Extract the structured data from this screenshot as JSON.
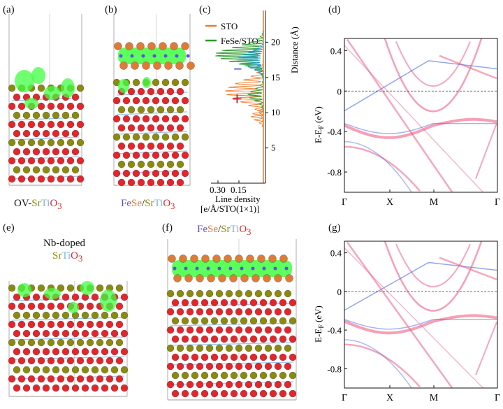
{
  "panels": {
    "a": {
      "label": "(a)",
      "caption": {
        "prefix": "OV-",
        "sr": "Sr",
        "ti": "Ti",
        "o": "O",
        "sub": "3"
      }
    },
    "b": {
      "label": "(b)",
      "caption": {
        "fe": "Fe",
        "se": "Se",
        "sep": "/",
        "sr": "Sr",
        "ti": "Ti",
        "o": "O",
        "sub": "3"
      }
    },
    "c": {
      "label": "(c)"
    },
    "d": {
      "label": "(d)"
    },
    "e": {
      "label": "(e)",
      "caption_line1": "Nb-doped",
      "caption": {
        "sr": "Sr",
        "ti": "Ti",
        "o": "O",
        "sub": "3"
      }
    },
    "f": {
      "label": "(f)",
      "caption": {
        "fe": "Fe",
        "se": "Se",
        "sep": "/",
        "sr": "Sr",
        "ti": "Ti",
        "o": "O",
        "sub": "3"
      }
    },
    "g": {
      "label": "(g)"
    }
  },
  "density_plot": {
    "legend": [
      {
        "name": "STO",
        "color": "#f07a2a"
      },
      {
        "name": "FeSe/STO",
        "color": "#2a9a2a"
      }
    ],
    "xlabel_line1": "Line density",
    "xlabel_line2": "[e/Å/STO(1×1)]",
    "x_ticks": [
      "0.30",
      "0.15"
    ],
    "ylabel": "Distance (Å)",
    "y_ticks": [
      "5",
      "10",
      "15",
      "20"
    ],
    "minus_sign": "−",
    "plus_sign": "+"
  },
  "band_plots": {
    "ylabel": "E-E",
    "ylabel_sub": "F",
    "ylabel_unit": " (eV)",
    "y_ticks": [
      "0.4",
      "0",
      "-0.4",
      "-0.8"
    ],
    "k_labels": [
      "Γ",
      "X",
      "M",
      "Γ"
    ]
  },
  "colors": {
    "oxygen": "#e3262b",
    "strontium": "#8a8a10",
    "titanium": "#7fb7e8",
    "iron": "#5a52d8",
    "selenium": "#e07b35",
    "charge": "#40ff40",
    "band_red": "#f0507a",
    "band_blue": "#4a6ae0"
  }
}
